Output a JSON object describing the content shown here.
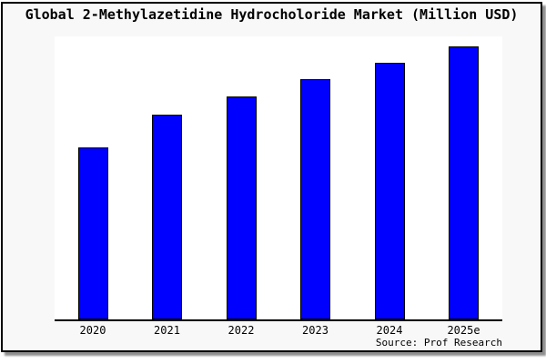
{
  "window": {
    "title": "Global 2-Methylazetidine Hydrocholoride Market (Million USD)",
    "source": "Source: Prof Research"
  },
  "chart_data": {
    "type": "bar",
    "title": "Global 2-Methylazetidine Hydrocholoride Market (Million USD)",
    "categories": [
      "2020",
      "2021",
      "2022",
      "2023",
      "2024",
      "2025e"
    ],
    "values": [
      62.8,
      74.8,
      81.7,
      87.7,
      93.7,
      100
    ],
    "value_note": "y-axis has no tick labels; values are relative bar heights indexed to 2025e = 100",
    "xlabel": "",
    "ylabel": "",
    "ylim": [
      0,
      103.5
    ],
    "grid": false,
    "legend": null,
    "source": "Source: Prof Research",
    "colors": {
      "bar_fill": "#0000ff",
      "bar_border": "#000000",
      "background": "#f8f8f8",
      "plot_background": "#ffffff",
      "axis": "#000000",
      "frame_border": "#000000",
      "shadow": "#8f8f8f",
      "text": "#000000"
    }
  }
}
